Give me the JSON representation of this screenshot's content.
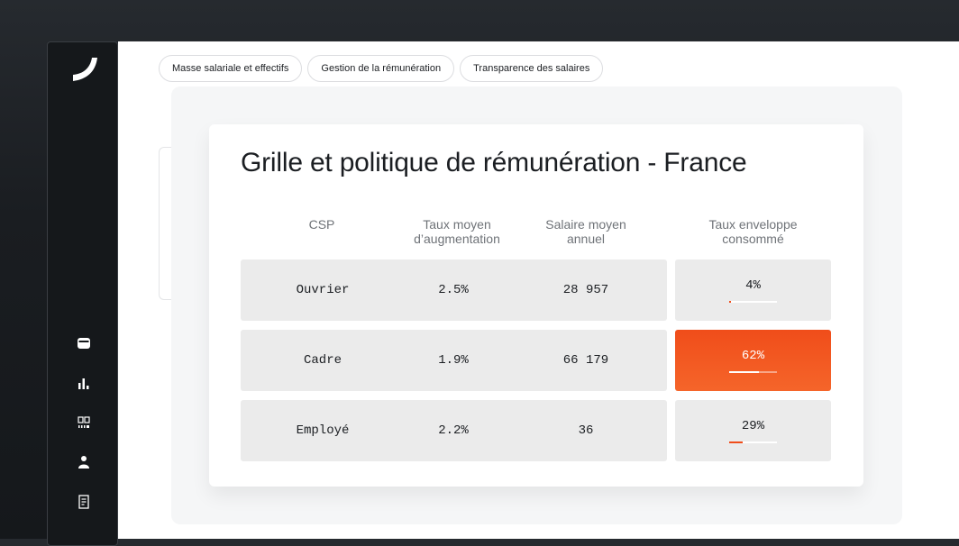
{
  "tabs": [
    {
      "label": "Masse salariale et effectifs"
    },
    {
      "label": "Gestion de la rémunération"
    },
    {
      "label": "Transparence des salaires"
    }
  ],
  "card": {
    "title": "Grille et politique de rémunération - France",
    "columns": {
      "csp": "CSP",
      "taux_line1": "Taux moyen",
      "taux_line2": "d’augmentation",
      "salaire_line1": "Salaire moyen",
      "salaire_line2": "annuel",
      "env_line1": "Taux enveloppe",
      "env_line2": "consommé"
    },
    "rows": [
      {
        "csp": "Ouvrier",
        "taux": "2.5%",
        "salaire": "28 957",
        "enveloppe": "4%",
        "enveloppe_pct": 4
      },
      {
        "csp": "Cadre",
        "taux": "1.9%",
        "salaire": "66 179",
        "enveloppe": "62%",
        "enveloppe_pct": 62
      },
      {
        "csp": "Employé",
        "taux": "2.2%",
        "salaire": "36",
        "enveloppe": "29%",
        "enveloppe_pct": 29
      }
    ],
    "highlighted_row": 1
  },
  "sidebar_icons": [
    "wallet-icon",
    "bar-chart-icon",
    "counter-icon",
    "user-icon",
    "document-icon"
  ],
  "colors": {
    "accent": "#f04d1a",
    "sidebar": "#15181b",
    "row_bg": "#ebebeb"
  }
}
